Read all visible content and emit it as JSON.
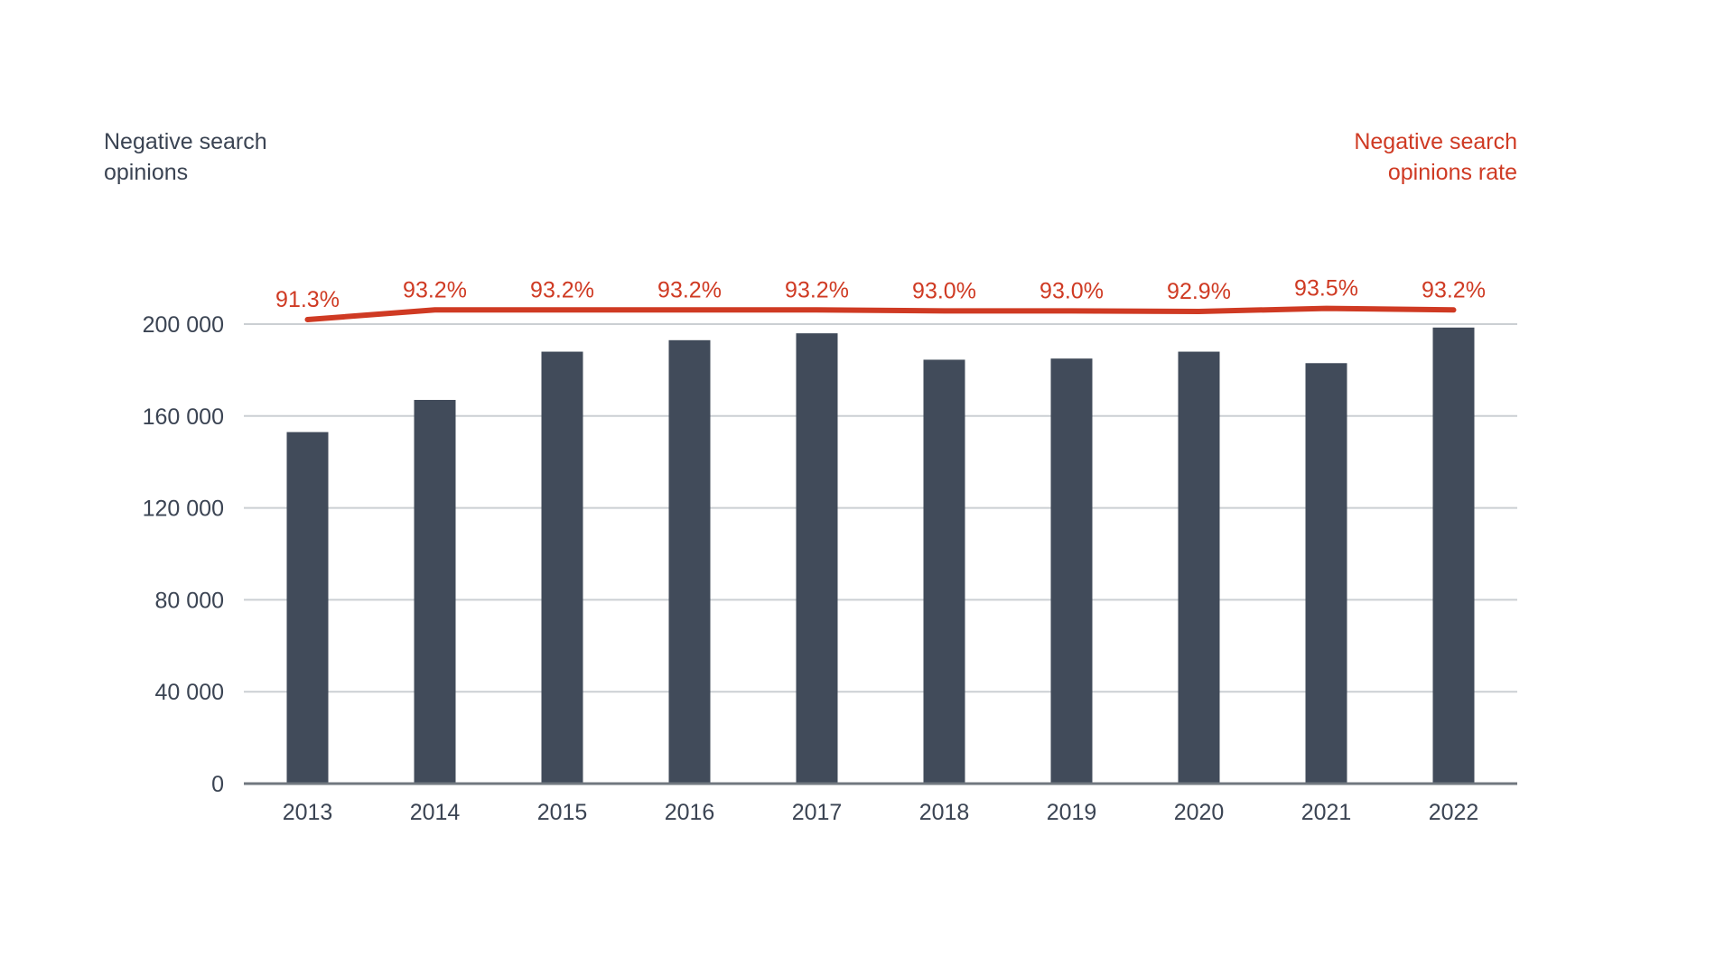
{
  "titles": {
    "left_axis_title": "Negative search\nopinions",
    "right_axis_title": "Negative search\nopinions rate"
  },
  "colors": {
    "bar": "#414B5A",
    "line": "#CF3A23",
    "text_dark": "#3B4453",
    "gridline": "#CBCFD3",
    "axis_line": "#70777F",
    "background": "#FFFFFF"
  },
  "chart_data": {
    "type": "bar",
    "title": "",
    "categories": [
      "2013",
      "2014",
      "2015",
      "2016",
      "2017",
      "2018",
      "2019",
      "2020",
      "2021",
      "2022"
    ],
    "series": [
      {
        "name": "Negative search opinions",
        "type": "bar",
        "values": [
          153000,
          167000,
          188000,
          193000,
          196000,
          184500,
          185000,
          188000,
          183000,
          198500
        ]
      },
      {
        "name": "Negative search opinions rate",
        "type": "line",
        "values": [
          91.3,
          93.2,
          93.2,
          93.2,
          93.2,
          93.0,
          93.0,
          92.9,
          93.5,
          93.2
        ],
        "labels": [
          "91.3%",
          "93.2%",
          "93.2%",
          "93.2%",
          "93.2%",
          "93.0%",
          "93.0%",
          "92.9%",
          "93.5%",
          "93.2%"
        ],
        "unit": "%"
      }
    ],
    "y_axis": {
      "tick_labels": [
        "0",
        "40 000",
        "80 000",
        "120 000",
        "160 000",
        "200 000"
      ],
      "tick_values": [
        0,
        40000,
        80000,
        120000,
        160000,
        200000
      ],
      "max": 200000
    },
    "right_axis": {
      "visible": false,
      "implied_range": [
        0,
        100
      ]
    },
    "grid": true,
    "legend_position": "axis-titles-top-corners"
  }
}
